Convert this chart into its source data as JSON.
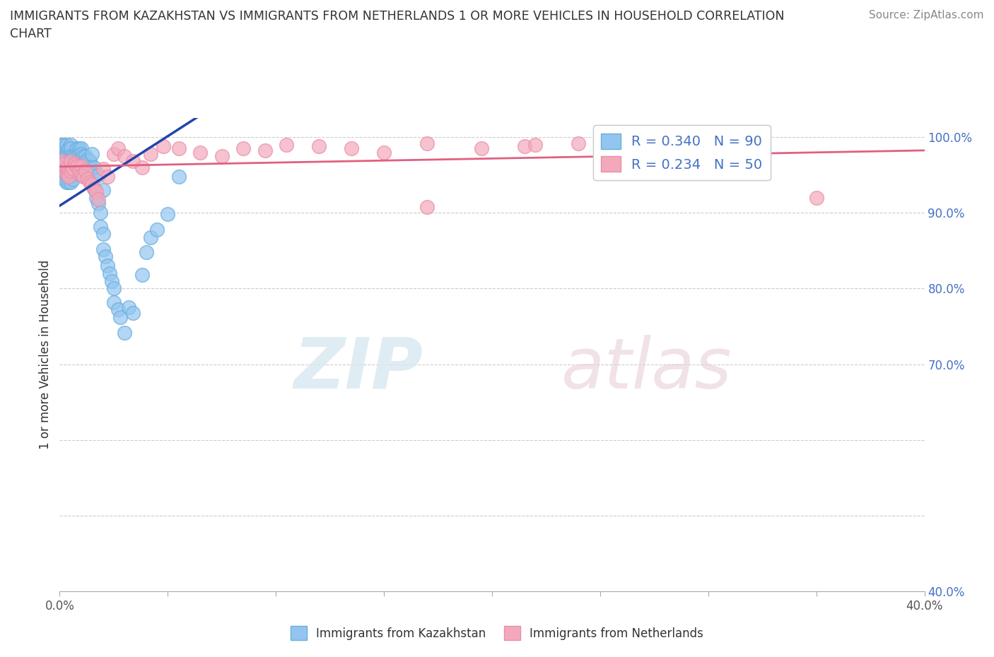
{
  "title_line1": "IMMIGRANTS FROM KAZAKHSTAN VS IMMIGRANTS FROM NETHERLANDS 1 OR MORE VEHICLES IN HOUSEHOLD CORRELATION",
  "title_line2": "CHART",
  "source": "Source: ZipAtlas.com",
  "ylabel": "1 or more Vehicles in Household",
  "xlim": [
    0.0,
    0.4
  ],
  "ylim": [
    0.4,
    1.025
  ],
  "x_ticks": [
    0.0,
    0.05,
    0.1,
    0.15,
    0.2,
    0.25,
    0.3,
    0.35,
    0.4
  ],
  "x_tick_labels": [
    "0.0%",
    "",
    "",
    "",
    "",
    "",
    "",
    "",
    "40.0%"
  ],
  "y_ticks_right": [
    0.4,
    0.5,
    0.6,
    0.7,
    0.8,
    0.9,
    1.0
  ],
  "y_tick_labels_right": [
    "40.0%",
    "",
    "",
    "70.0%",
    "80.0%",
    "90.0%",
    "100.0%"
  ],
  "kaz_color": "#92c5f0",
  "neth_color": "#f4a8bc",
  "kaz_edge_color": "#6aaede",
  "neth_edge_color": "#e890a8",
  "kaz_line_color": "#2244aa",
  "neth_line_color": "#e06080",
  "kaz_R": 0.34,
  "kaz_N": 90,
  "neth_R": 0.234,
  "neth_N": 50,
  "legend_label_kaz": "Immigrants from Kazakhstan",
  "legend_label_neth": "Immigrants from Netherlands",
  "watermark_zip": "ZIP",
  "watermark_atlas": "atlas",
  "kaz_x": [
    0.001,
    0.001,
    0.001,
    0.001,
    0.002,
    0.002,
    0.002,
    0.002,
    0.002,
    0.003,
    0.003,
    0.003,
    0.003,
    0.003,
    0.003,
    0.003,
    0.004,
    0.004,
    0.004,
    0.004,
    0.004,
    0.004,
    0.005,
    0.005,
    0.005,
    0.005,
    0.005,
    0.005,
    0.005,
    0.005,
    0.006,
    0.006,
    0.006,
    0.006,
    0.006,
    0.007,
    0.007,
    0.007,
    0.008,
    0.008,
    0.008,
    0.008,
    0.009,
    0.009,
    0.009,
    0.009,
    0.01,
    0.01,
    0.01,
    0.01,
    0.01,
    0.01,
    0.011,
    0.011,
    0.012,
    0.012,
    0.012,
    0.013,
    0.013,
    0.014,
    0.014,
    0.015,
    0.015,
    0.016,
    0.016,
    0.017,
    0.018,
    0.018,
    0.019,
    0.019,
    0.02,
    0.02,
    0.02,
    0.021,
    0.022,
    0.023,
    0.024,
    0.025,
    0.025,
    0.027,
    0.028,
    0.03,
    0.032,
    0.034,
    0.038,
    0.04,
    0.042,
    0.045,
    0.05,
    0.055
  ],
  "kaz_y": [
    0.99,
    0.98,
    0.965,
    0.955,
    0.99,
    0.975,
    0.965,
    0.955,
    0.945,
    0.99,
    0.98,
    0.975,
    0.965,
    0.96,
    0.95,
    0.94,
    0.985,
    0.975,
    0.97,
    0.96,
    0.95,
    0.94,
    0.99,
    0.985,
    0.975,
    0.97,
    0.965,
    0.96,
    0.95,
    0.94,
    0.975,
    0.968,
    0.96,
    0.952,
    0.944,
    0.975,
    0.965,
    0.958,
    0.985,
    0.975,
    0.968,
    0.96,
    0.985,
    0.978,
    0.97,
    0.962,
    0.985,
    0.978,
    0.972,
    0.965,
    0.958,
    0.95,
    0.975,
    0.965,
    0.975,
    0.968,
    0.96,
    0.97,
    0.962,
    0.968,
    0.96,
    0.978,
    0.952,
    0.96,
    0.932,
    0.92,
    0.95,
    0.912,
    0.9,
    0.882,
    0.93,
    0.872,
    0.852,
    0.842,
    0.83,
    0.82,
    0.81,
    0.8,
    0.782,
    0.772,
    0.762,
    0.742,
    0.775,
    0.768,
    0.818,
    0.848,
    0.868,
    0.878,
    0.898,
    0.948
  ],
  "neth_x": [
    0.001,
    0.002,
    0.003,
    0.003,
    0.004,
    0.004,
    0.005,
    0.005,
    0.006,
    0.007,
    0.008,
    0.009,
    0.01,
    0.01,
    0.011,
    0.012,
    0.013,
    0.014,
    0.015,
    0.016,
    0.017,
    0.018,
    0.02,
    0.022,
    0.025,
    0.027,
    0.03,
    0.034,
    0.038,
    0.042,
    0.048,
    0.055,
    0.065,
    0.075,
    0.085,
    0.095,
    0.105,
    0.12,
    0.135,
    0.15,
    0.17,
    0.195,
    0.215,
    0.24,
    0.265,
    0.285,
    0.31,
    0.17,
    0.22,
    0.35
  ],
  "neth_y": [
    0.968,
    0.965,
    0.958,
    0.952,
    0.955,
    0.948,
    0.968,
    0.955,
    0.958,
    0.965,
    0.962,
    0.955,
    0.962,
    0.95,
    0.948,
    0.955,
    0.945,
    0.94,
    0.938,
    0.932,
    0.928,
    0.918,
    0.958,
    0.948,
    0.978,
    0.985,
    0.975,
    0.968,
    0.96,
    0.978,
    0.988,
    0.985,
    0.98,
    0.975,
    0.985,
    0.982,
    0.99,
    0.988,
    0.985,
    0.98,
    0.992,
    0.985,
    0.988,
    0.992,
    0.99,
    0.985,
    0.995,
    0.908,
    0.99,
    0.92
  ]
}
